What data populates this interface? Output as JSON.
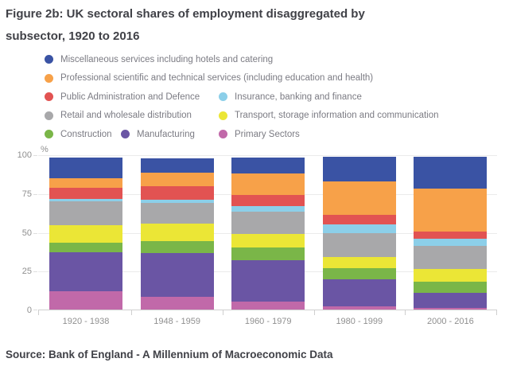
{
  "title": {
    "line1": "Figure 2b: UK sectoral shares of employment disaggregated by",
    "line2": "subsector, 1920 to 2016"
  },
  "source": "Source: Bank of England - A Millennium of Macroeconomic Data",
  "chart_data": {
    "type": "bar",
    "stacked": true,
    "title": "Figure 2b: UK sectoral shares of employment disaggregated by subsector, 1920 to 2016",
    "ylabel": "%",
    "ylim": [
      0,
      100
    ],
    "yticks": [
      100,
      75,
      50,
      25,
      0
    ],
    "grid": true,
    "legend_position": "top",
    "categories": [
      "1920 - 1938",
      "1948 - 1959",
      "1960 - 1979",
      "1980 - 1999",
      "2000 - 2016"
    ],
    "series": [
      {
        "name": "Primary Sectors",
        "color": "#c169a9",
        "values": [
          12,
          8,
          5,
          2,
          1
        ]
      },
      {
        "name": "Manufacturing",
        "color": "#6a55a4",
        "values": [
          25,
          28.5,
          27,
          17.5,
          10
        ]
      },
      {
        "name": "Construction",
        "color": "#7ab648",
        "values": [
          6,
          7.5,
          8,
          7,
          7
        ]
      },
      {
        "name": "Transport, storage information and communication",
        "color": "#ebe636",
        "values": [
          11.5,
          11.5,
          8.5,
          7.5,
          8
        ]
      },
      {
        "name": "Retail and wholesale distribution",
        "color": "#a8a8aa",
        "values": [
          15,
          13,
          14.5,
          15,
          15
        ]
      },
      {
        "name": "Insurance, banking and finance",
        "color": "#8ccfe9",
        "values": [
          2,
          2.5,
          3.5,
          6,
          4.5
        ]
      },
      {
        "name": "Public Administration and Defence",
        "color": "#e25352",
        "values": [
          7,
          8.5,
          7.5,
          6,
          5
        ]
      },
      {
        "name": "Professional scientific and technical services (including education and health)",
        "color": "#f7a149",
        "values": [
          6,
          8.5,
          13.5,
          21.5,
          27.5
        ]
      },
      {
        "name": "Miscellaneous services including hotels and catering",
        "color": "#3a53a4",
        "values": [
          13.5,
          9.5,
          10.5,
          16,
          20.5
        ]
      }
    ],
    "legend_rows": [
      [
        8
      ],
      [
        7
      ],
      [
        6,
        5
      ],
      [
        4,
        3
      ],
      [
        2,
        1,
        0
      ]
    ]
  }
}
